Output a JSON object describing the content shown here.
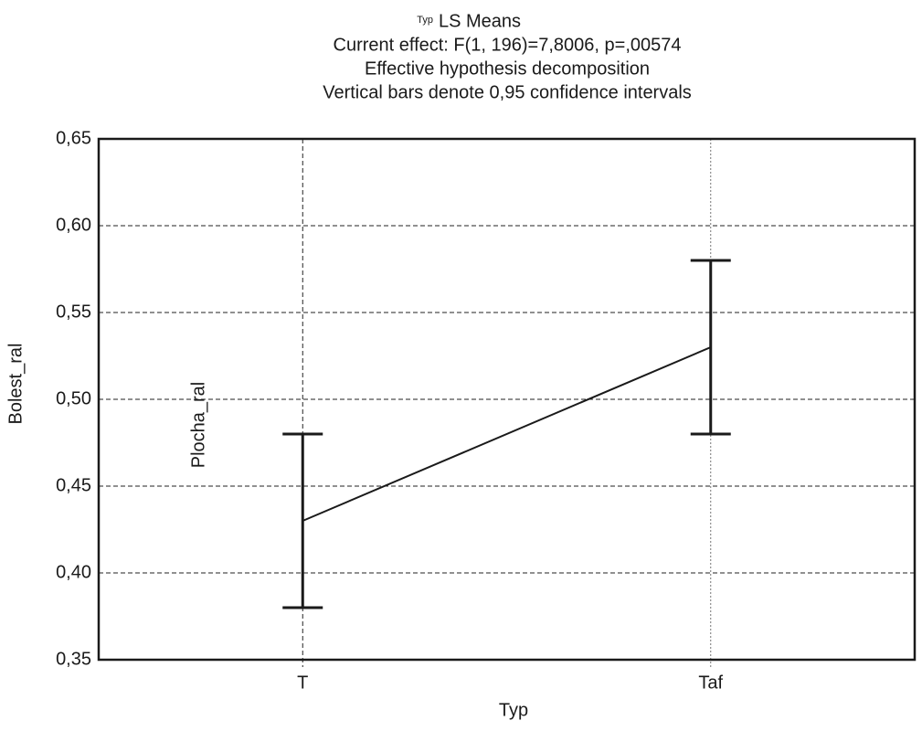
{
  "chart_data": {
    "type": "line",
    "title_prefix": "Typ",
    "title": "LS Means",
    "subtitles": [
      "Current effect: F(1, 196)=7,8006, p=,00574",
      "Effective hypothesis decomposition",
      "Vertical bars denote 0,95 confidence intervals"
    ],
    "x_label": "Typ",
    "y_label": "Bolest_ral",
    "annotation": "Plocha_ral",
    "categories": [
      "T",
      "Taf"
    ],
    "values": [
      0.43,
      0.53
    ],
    "errors": [
      0.05,
      0.05
    ],
    "color": "#1a1a1a",
    "ylim": [
      0.35,
      0.65
    ],
    "yticks": [
      {
        "value": 0.35,
        "label": "0,35"
      },
      {
        "value": 0.4,
        "label": "0,40"
      },
      {
        "value": 0.45,
        "label": "0,45"
      },
      {
        "value": 0.5,
        "label": "0,50"
      },
      {
        "value": 0.55,
        "label": "0,55"
      },
      {
        "value": 0.6,
        "label": "0,60"
      },
      {
        "value": 0.65,
        "label": "0,65"
      }
    ],
    "grid": true
  }
}
